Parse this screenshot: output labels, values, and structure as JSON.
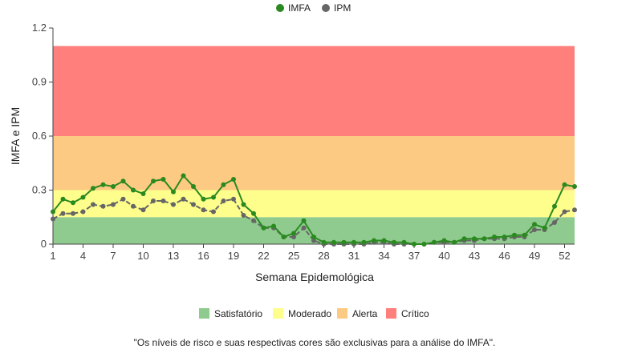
{
  "chart_data": {
    "type": "line",
    "xlabel": "Semana Epidemológica",
    "ylabel": "IMFA e IPM",
    "xlim": [
      1,
      53
    ],
    "ylim": [
      0,
      1.2
    ],
    "x_ticks": [
      1,
      4,
      7,
      10,
      13,
      16,
      19,
      22,
      25,
      28,
      31,
      34,
      37,
      40,
      43,
      46,
      49,
      52
    ],
    "y_ticks": [
      0,
      0.3,
      0.6,
      0.9,
      1.2
    ],
    "y_tick_labels": [
      "0",
      "0.3",
      "0.6",
      "0.9",
      "1.2"
    ],
    "grid": false,
    "legend_placement": "top-center",
    "x": [
      1,
      2,
      3,
      4,
      5,
      6,
      7,
      8,
      9,
      10,
      11,
      12,
      13,
      14,
      15,
      16,
      17,
      18,
      19,
      20,
      21,
      22,
      23,
      24,
      25,
      26,
      27,
      28,
      29,
      30,
      31,
      32,
      33,
      34,
      35,
      36,
      37,
      38,
      39,
      40,
      41,
      42,
      43,
      44,
      45,
      46,
      47,
      48,
      49,
      50,
      51,
      52,
      53
    ],
    "series": [
      {
        "name": "IMFA",
        "color": "#2a8a1f",
        "dash": "solid",
        "values": [
          0.18,
          0.25,
          0.23,
          0.26,
          0.31,
          0.33,
          0.32,
          0.35,
          0.3,
          0.28,
          0.35,
          0.36,
          0.29,
          0.38,
          0.32,
          0.25,
          0.26,
          0.33,
          0.36,
          0.22,
          0.17,
          0.09,
          0.1,
          0.04,
          0.06,
          0.13,
          0.04,
          0.01,
          0.01,
          0.01,
          0.01,
          0.01,
          0.02,
          0.02,
          0.01,
          0.01,
          0.0,
          0.0,
          0.01,
          0.02,
          0.01,
          0.03,
          0.03,
          0.03,
          0.04,
          0.04,
          0.05,
          0.05,
          0.11,
          0.09,
          0.21,
          0.33,
          0.32
        ]
      },
      {
        "name": "IPM",
        "color": "#666666",
        "dash": "dashed",
        "values": [
          0.14,
          0.17,
          0.17,
          0.18,
          0.22,
          0.21,
          0.22,
          0.25,
          0.21,
          0.19,
          0.24,
          0.24,
          0.22,
          0.25,
          0.22,
          0.19,
          0.18,
          0.24,
          0.25,
          0.16,
          0.13,
          0.09,
          0.09,
          0.04,
          0.04,
          0.09,
          0.02,
          0.0,
          0.0,
          0.0,
          0.0,
          0.0,
          0.01,
          0.01,
          0.0,
          0.0,
          0.0,
          0.0,
          0.01,
          0.01,
          0.01,
          0.02,
          0.02,
          0.03,
          0.03,
          0.03,
          0.04,
          0.04,
          0.08,
          0.08,
          0.12,
          0.18,
          0.19
        ]
      }
    ],
    "risk_bands": [
      {
        "name": "Satisfatório",
        "from": 0,
        "to": 0.15,
        "color": "#8fcb8f"
      },
      {
        "name": "Moderado",
        "from": 0.15,
        "to": 0.3,
        "color": "#fefe8c"
      },
      {
        "name": "Alerta",
        "from": 0.3,
        "to": 0.6,
        "color": "#fcca82"
      },
      {
        "name": "Crítico",
        "from": 0.6,
        "to": 1.1,
        "color": "#fe7f7b"
      }
    ],
    "note": "\"Os níveis de risco e suas respectivas cores são exclusivas para a análise do IMFA\"."
  }
}
